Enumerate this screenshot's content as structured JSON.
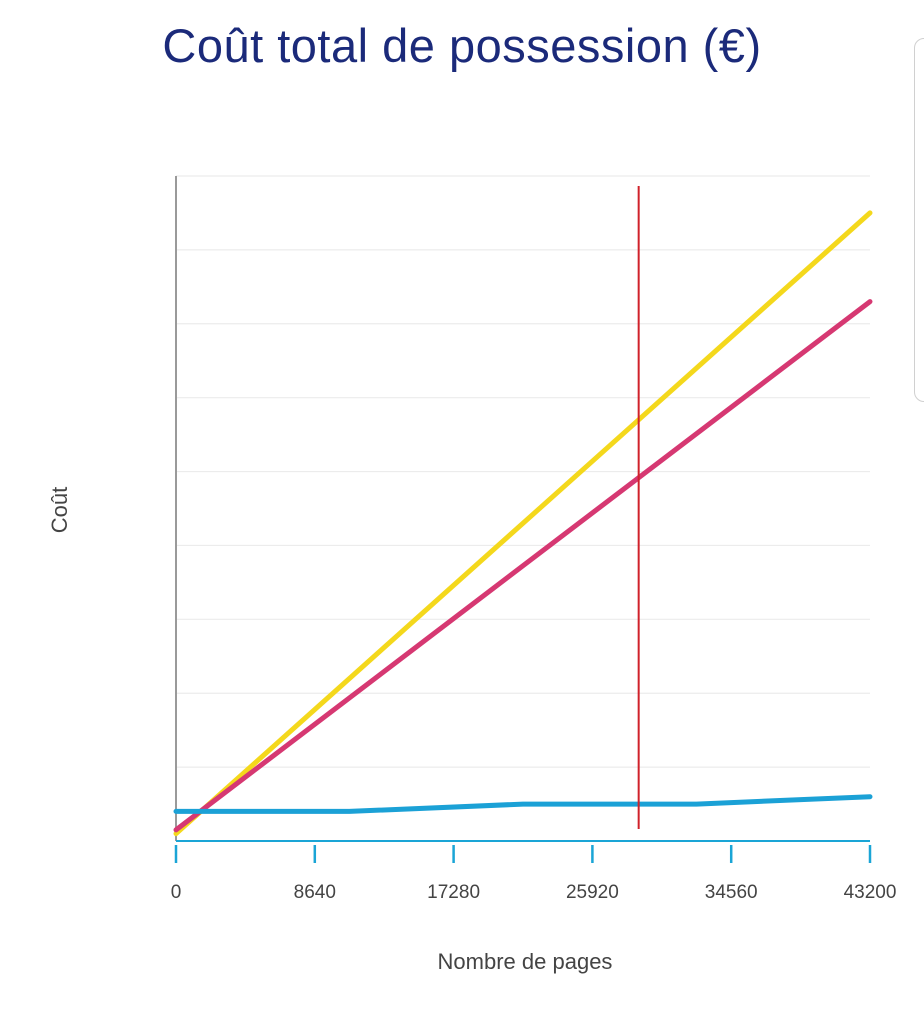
{
  "chart_data": {
    "type": "line",
    "title": "Coût total de possession (€)",
    "xlabel": "Nombre de pages",
    "ylabel": "Coût",
    "x_ticks": [
      0,
      8640,
      17280,
      25920,
      34560,
      43200
    ],
    "xlim": [
      0,
      43200
    ],
    "ylim": [
      0,
      9
    ],
    "y_gridlines": 9,
    "y_tick_labels_shown": false,
    "grid": true,
    "marker_x": 28800,
    "colors": {
      "title": "#1b2a7a",
      "marker": "#d0212a",
      "grid": "#ececec",
      "axis_ticks": "#1aa5d6"
    },
    "series": [
      {
        "color": "#f4d81c",
        "points": [
          [
            0,
            0.1
          ],
          [
            43200,
            8.5
          ]
        ]
      },
      {
        "color": "#d63872",
        "points": [
          [
            0,
            0.15
          ],
          [
            43200,
            7.3
          ]
        ]
      },
      {
        "color": "#1ba1d6",
        "points": [
          [
            0,
            0.4
          ],
          [
            10800,
            0.4
          ],
          [
            21600,
            0.5
          ],
          [
            32400,
            0.5
          ],
          [
            43200,
            0.6
          ]
        ]
      }
    ]
  }
}
